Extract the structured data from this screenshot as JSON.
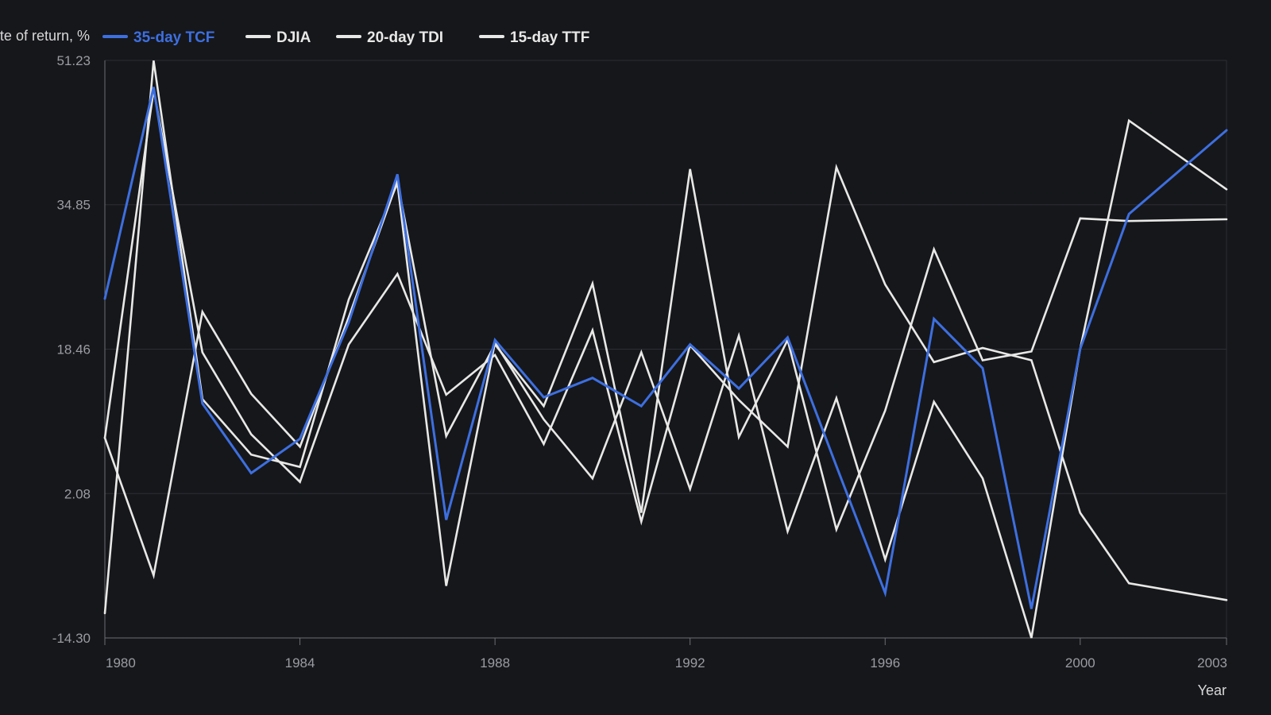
{
  "chart_data": {
    "type": "line",
    "ylabel": "Rate of return, %",
    "xlabel": "Year",
    "x": [
      1980,
      1981,
      1982,
      1983,
      1984,
      1985,
      1986,
      1987,
      1988,
      1989,
      1990,
      1991,
      1992,
      1993,
      1994,
      1995,
      1996,
      1997,
      1998,
      1999,
      2000,
      2001,
      2003
    ],
    "xticks": [
      1980,
      1984,
      1988,
      1992,
      1996,
      2000,
      2003
    ],
    "yticks": [
      -14.3,
      2.08,
      18.46,
      34.85,
      51.23
    ],
    "ytick_labels": [
      "-14.30",
      "2.08",
      "18.46",
      "34.85",
      "51.23"
    ],
    "xlim": [
      1980,
      2003
    ],
    "ylim": [
      -14.3,
      51.23
    ],
    "grid": true,
    "legend_position": "top-left",
    "series": [
      {
        "name": "35-day TCF",
        "color": "#3d6fe0",
        "values": [
          24.2,
          48.2,
          12.3,
          4.4,
          8.3,
          21.5,
          38.3,
          -0.9,
          19.5,
          13.0,
          15.2,
          12.0,
          19.0,
          14.0,
          19.8,
          5.2,
          -9.2,
          21.9,
          16.3,
          -11.0,
          18.5,
          33.8,
          43.3
        ]
      },
      {
        "name": "DJIA",
        "color": "#e8e8e6",
        "values": [
          8.4,
          -7.2,
          22.7,
          13.4,
          7.4,
          22.1,
          37.5,
          8.6,
          19.0,
          12.0,
          25.9,
          -0.1,
          38.9,
          8.5,
          19.5,
          -2.0,
          11.5,
          29.8,
          17.2,
          18.2,
          33.3,
          33.0,
          33.2
        ]
      },
      {
        "name": "20-day TDI",
        "color": "#e8e8e6",
        "values": [
          8.4,
          47.9,
          18.1,
          8.8,
          3.4,
          19.0,
          27.0,
          13.3,
          17.8,
          7.7,
          20.6,
          -1.1,
          18.9,
          12.7,
          7.4,
          39.1,
          25.8,
          17.0,
          18.6,
          17.2,
          -0.1,
          -8.1,
          -10.0
        ]
      },
      {
        "name": "15-day TTF",
        "color": "#e8e8e6",
        "values": [
          -11.5,
          51.2,
          12.8,
          6.5,
          5.1,
          24.1,
          37.3,
          -8.4,
          19.2,
          10.5,
          3.8,
          18.1,
          2.6,
          20.0,
          -2.2,
          12.9,
          -5.4,
          12.5,
          3.8,
          -14.3,
          18.5,
          44.4,
          36.6
        ]
      }
    ]
  }
}
